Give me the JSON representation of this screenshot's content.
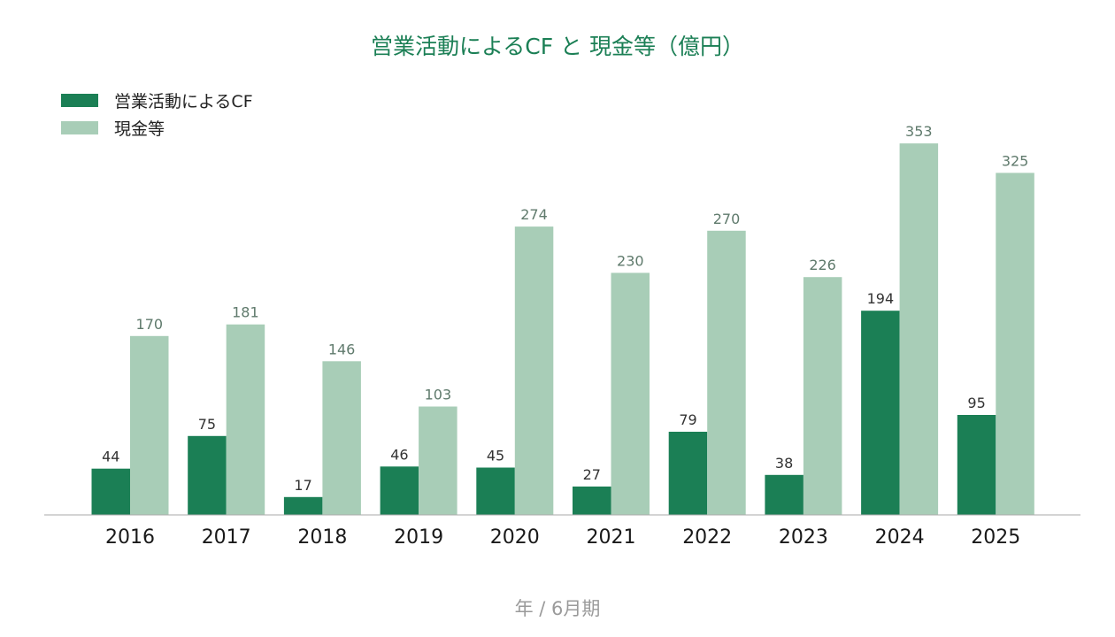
{
  "colors": {
    "operating_cf": "#1b7f55",
    "cash": "#a8cdb7",
    "title": "#1b7f55",
    "axis_line": "#aaaaaa"
  },
  "chart_data": {
    "type": "bar",
    "title": "営業活動によるCF と 現金等（億円）",
    "xlabel": "年 / 6月期",
    "ylabel": "",
    "categories": [
      "2016",
      "2017",
      "2018",
      "2019",
      "2020",
      "2021",
      "2022",
      "2023",
      "2024",
      "2025"
    ],
    "series": [
      {
        "name": "営業活動によるCF",
        "values": [
          44,
          75,
          17,
          46,
          45,
          27,
          79,
          38,
          194,
          95
        ]
      },
      {
        "name": "現金等",
        "values": [
          170,
          181,
          146,
          103,
          274,
          230,
          270,
          226,
          353,
          325
        ]
      }
    ],
    "ylim": [
      0,
      380
    ],
    "grid": false,
    "legend_position": "top-left",
    "data_labels": true
  }
}
